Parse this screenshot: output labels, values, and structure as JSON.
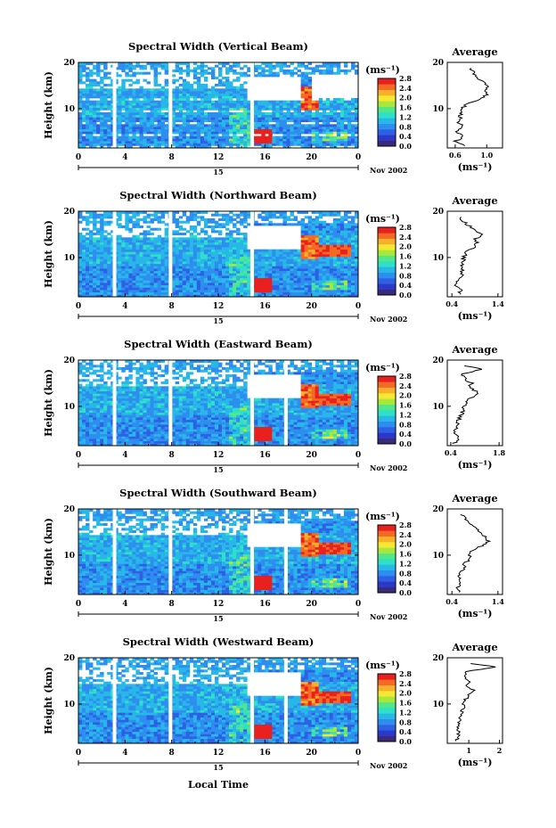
{
  "figure": {
    "xlabel": "Local Time",
    "date_label": "Nov 2002",
    "date_marker": "15",
    "colorbar": {
      "unit_label": "(ms⁻¹)",
      "tick_labels": [
        "2.8",
        "2.4",
        "2.0",
        "1.6",
        "1.2",
        "0.8",
        "0.4",
        "0.0"
      ],
      "levels": [
        0.0,
        0.4,
        0.8,
        1.2,
        1.6,
        2.0,
        2.4,
        2.8
      ],
      "colors": [
        "#3a2a7a",
        "#2b38c8",
        "#2e60e6",
        "#2e8ef0",
        "#27b8e8",
        "#2ee0c8",
        "#52e88a",
        "#a8e83a",
        "#f4e832",
        "#f8b02a",
        "#f46a24",
        "#e8201e"
      ]
    },
    "white": "#ffffff",
    "time_ticks": [
      "0",
      "4",
      "8",
      "12",
      "16",
      "20",
      "0"
    ],
    "height_ticks": [
      "20",
      "10"
    ],
    "ylabel": "Height (km)",
    "avg_title": "Average",
    "avg_xlabel": "(ms⁻¹)"
  },
  "chart_data": [
    {
      "type": "heatmap",
      "title": "Spectral Width (Vertical Beam)",
      "xlabel": "",
      "ylabel": "Height (km)",
      "xlim": [
        0,
        24
      ],
      "ylim": [
        1.5,
        20
      ],
      "gaps_hours": [
        3.1,
        7.9,
        14.9
      ],
      "series": [],
      "profile": {
        "title": "Average",
        "xticks": [
          "0.6",
          "1.0"
        ],
        "xticks_values": [
          0.6,
          1.0
        ],
        "xlim": [
          0.5,
          1.2
        ],
        "height_km": [
          2,
          3,
          4,
          5,
          6,
          7,
          8,
          9,
          10,
          11,
          12,
          13,
          14,
          15,
          16,
          17,
          18,
          19
        ],
        "width": [
          0.75,
          0.6,
          0.72,
          0.62,
          0.7,
          0.65,
          0.66,
          0.68,
          0.7,
          0.72,
          0.9,
          1.0,
          0.98,
          1.02,
          0.95,
          0.85,
          0.82,
          0.8
        ]
      }
    },
    {
      "type": "heatmap",
      "title": "Spectral Width (Northward Beam)",
      "xlabel": "",
      "ylabel": "Height (km)",
      "xlim": [
        0,
        24
      ],
      "ylim": [
        1.5,
        20
      ],
      "gaps_hours": [
        3.1,
        7.9,
        14.9
      ],
      "profile": {
        "title": "Average",
        "xticks": [
          "0.4",
          "1.4"
        ],
        "xticks_values": [
          0.4,
          1.4
        ],
        "xlim": [
          0.3,
          1.5
        ],
        "height_km": [
          2,
          3,
          4,
          5,
          6,
          7,
          8,
          9,
          10,
          11,
          12,
          13,
          14,
          15,
          16,
          17,
          18,
          19
        ],
        "width": [
          0.55,
          0.6,
          0.5,
          0.55,
          0.6,
          0.62,
          0.6,
          0.65,
          0.65,
          0.7,
          0.85,
          0.95,
          0.9,
          1.05,
          0.9,
          0.75,
          0.62,
          0.55
        ]
      }
    },
    {
      "type": "heatmap",
      "title": "Spectral Width (Eastward Beam)",
      "xlabel": "",
      "ylabel": "Height (km)",
      "xlim": [
        0,
        24
      ],
      "ylim": [
        1.5,
        20
      ],
      "gaps_hours": [
        3.1,
        7.9,
        14.9,
        17.8
      ],
      "profile": {
        "title": "Average",
        "xticks": [
          "0.4",
          "1.8"
        ],
        "xticks_values": [
          0.4,
          1.8
        ],
        "xlim": [
          0.3,
          1.9
        ],
        "height_km": [
          2,
          3,
          4,
          5,
          6,
          7,
          8,
          9,
          10,
          11,
          12,
          13,
          14,
          15,
          16,
          17,
          18,
          19
        ],
        "width": [
          0.5,
          0.6,
          0.55,
          0.55,
          0.6,
          0.62,
          0.7,
          0.75,
          0.8,
          0.85,
          1.0,
          1.2,
          0.95,
          1.0,
          0.8,
          0.75,
          1.3,
          0.7
        ]
      }
    },
    {
      "type": "heatmap",
      "title": "Spectral Width (Southward Beam)",
      "xlabel": "",
      "ylabel": "Height (km)",
      "xlim": [
        0,
        24
      ],
      "ylim": [
        1.5,
        20
      ],
      "gaps_hours": [
        3.1,
        7.9,
        14.9,
        17.8
      ],
      "profile": {
        "title": "Average",
        "xticks": [
          "0.4",
          "1.4"
        ],
        "xticks_values": [
          0.4,
          1.4
        ],
        "xlim": [
          0.3,
          1.5
        ],
        "height_km": [
          2,
          3,
          4,
          5,
          6,
          7,
          8,
          9,
          10,
          11,
          12,
          13,
          14,
          15,
          16,
          17,
          18,
          19
        ],
        "width": [
          0.55,
          0.5,
          0.6,
          0.55,
          0.6,
          0.65,
          0.68,
          0.75,
          0.78,
          0.85,
          1.05,
          1.2,
          1.1,
          1.0,
          0.9,
          0.8,
          0.7,
          0.6
        ]
      }
    },
    {
      "type": "heatmap",
      "title": "Spectral Width (Westward Beam)",
      "xlabel": "Local Time",
      "ylabel": "Height (km)",
      "xlim": [
        0,
        24
      ],
      "ylim": [
        1.5,
        20
      ],
      "gaps_hours": [
        3.1,
        7.9,
        14.9,
        17.8
      ],
      "profile": {
        "title": "Average",
        "xticks": [
          "1",
          "2"
        ],
        "xticks_values": [
          1,
          2
        ],
        "xlim": [
          0.3,
          2.1
        ],
        "height_km": [
          2,
          3,
          4,
          5,
          6,
          7,
          8,
          9,
          10,
          11,
          12,
          13,
          14,
          15,
          16,
          17,
          18,
          19
        ],
        "width": [
          0.6,
          0.7,
          0.65,
          0.6,
          0.7,
          0.72,
          0.75,
          0.8,
          0.85,
          0.9,
          1.0,
          1.15,
          0.95,
          1.0,
          0.85,
          0.9,
          1.9,
          0.8
        ]
      }
    }
  ]
}
